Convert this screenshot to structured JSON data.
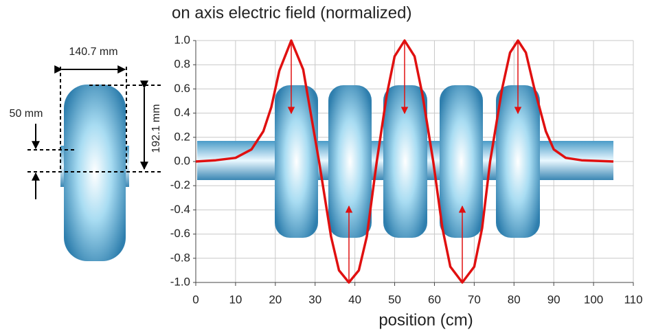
{
  "chart_data": {
    "type": "line",
    "title": "on axis electric field (normalized)",
    "x_label": "position (cm)",
    "annotations": [
      "140.7 mm",
      "50 mm",
      "192.1 mm"
    ],
    "x": [
      0,
      5,
      10,
      14,
      17,
      19,
      21,
      24,
      27,
      31,
      34,
      36,
      38.5,
      41,
      43,
      45.5,
      48,
      50,
      52.5,
      55,
      57,
      59.7,
      62,
      64,
      67,
      70,
      72,
      74,
      77,
      79,
      81,
      83,
      85,
      88,
      90,
      93,
      97,
      105
    ],
    "values": [
      0,
      0.01,
      0.03,
      0.1,
      0.25,
      0.45,
      0.75,
      1.0,
      0.76,
      0,
      -0.62,
      -0.9,
      -1.0,
      -0.9,
      -0.62,
      0,
      0.55,
      0.87,
      1.0,
      0.87,
      0.55,
      0,
      -0.55,
      -0.87,
      -1.0,
      -0.87,
      -0.55,
      0,
      0.6,
      0.9,
      1.0,
      0.9,
      0.62,
      0.25,
      0.1,
      0.03,
      0.01,
      0
    ],
    "color": "#e01010",
    "xlim": [
      0,
      110
    ],
    "xticks": [
      0,
      10,
      20,
      30,
      40,
      50,
      60,
      70,
      80,
      90,
      100,
      110
    ],
    "ylim": [
      -1,
      1
    ],
    "yticks": [
      {
        "value": 1,
        "label": "1.0"
      },
      0.8,
      0.6,
      0.4,
      0.2,
      {
        "value": 0,
        "label": "0.0"
      },
      -0.2,
      -0.4,
      -0.6,
      -0.8,
      {
        "value": -1,
        "label": "-1.0"
      }
    ],
    "grid": true
  }
}
